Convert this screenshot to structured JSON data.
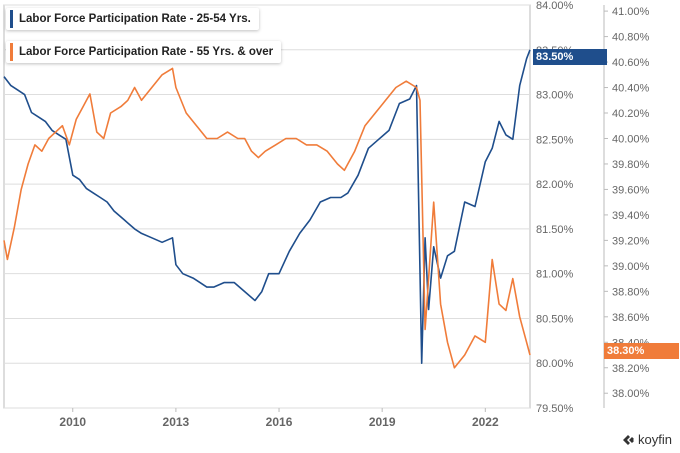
{
  "legend": {
    "series1": "Labor Force Participation Rate - 25-54 Yrs.",
    "series2": "Labor Force Participation Rate - 55 Yrs. & over"
  },
  "badges": {
    "left_axis": "83.50%",
    "right_axis": "38.30%"
  },
  "brand": {
    "name": "koyfin",
    "icon": "koyfin-logo-icon"
  },
  "colors": {
    "series1": "#1f4e8c",
    "series2": "#f07c3a",
    "grid": "#dedede",
    "axis": "#bbbbbb"
  },
  "chart_data": {
    "type": "line",
    "title": "",
    "x_range": [
      2008.0,
      2023.3
    ],
    "x_ticks": [
      2010,
      2013,
      2016,
      2019,
      2022
    ],
    "y_left": {
      "label": "",
      "ylim": [
        79.5,
        84.0
      ],
      "ticks": [
        79.5,
        80.0,
        80.5,
        81.0,
        81.5,
        82.0,
        82.5,
        83.0,
        83.5,
        84.0
      ],
      "tick_labels": [
        "79.50%",
        "80.00%",
        "80.50%",
        "81.00%",
        "81.50%",
        "82.00%",
        "82.50%",
        "83.00%",
        "83.50%",
        "84.00%"
      ]
    },
    "y_right": {
      "label": "",
      "ylim": [
        37.884,
        41.048
      ],
      "ticks": [
        38.0,
        38.2,
        38.4,
        38.6,
        38.8,
        39.0,
        39.2,
        39.4,
        39.6,
        39.8,
        40.0,
        40.2,
        40.4,
        40.6,
        40.8,
        41.0
      ],
      "tick_labels": [
        "38.00%",
        "38.20%",
        "38.40%",
        "38.60%",
        "38.80%",
        "39.00%",
        "39.20%",
        "39.40%",
        "39.60%",
        "39.80%",
        "40.00%",
        "40.20%",
        "40.40%",
        "40.60%",
        "40.80%",
        "41.00%"
      ]
    },
    "series": [
      {
        "name": "Labor Force Participation Rate - 25-54 Yrs.",
        "axis": "left",
        "x": [
          2008.0,
          2008.2,
          2008.4,
          2008.6,
          2008.8,
          2009.0,
          2009.2,
          2009.4,
          2009.6,
          2009.8,
          2010.0,
          2010.2,
          2010.4,
          2010.6,
          2010.8,
          2011.0,
          2011.2,
          2011.5,
          2011.8,
          2012.0,
          2012.3,
          2012.6,
          2012.9,
          2013.0,
          2013.2,
          2013.5,
          2013.7,
          2013.9,
          2014.1,
          2014.4,
          2014.7,
          2015.0,
          2015.3,
          2015.5,
          2015.7,
          2016.0,
          2016.3,
          2016.6,
          2016.9,
          2017.2,
          2017.5,
          2017.8,
          2018.0,
          2018.3,
          2018.6,
          2018.9,
          2019.2,
          2019.5,
          2019.8,
          2020.0,
          2020.15,
          2020.25,
          2020.35,
          2020.5,
          2020.7,
          2020.9,
          2021.1,
          2021.4,
          2021.7,
          2022.0,
          2022.2,
          2022.4,
          2022.6,
          2022.8,
          2023.0,
          2023.2,
          2023.3
        ],
        "values": [
          83.2,
          83.1,
          83.05,
          83.0,
          82.8,
          82.75,
          82.7,
          82.6,
          82.55,
          82.5,
          82.1,
          82.05,
          81.95,
          81.9,
          81.85,
          81.8,
          81.7,
          81.6,
          81.5,
          81.45,
          81.4,
          81.35,
          81.4,
          81.1,
          81.0,
          80.95,
          80.9,
          80.85,
          80.85,
          80.9,
          80.9,
          80.8,
          80.7,
          80.8,
          81.0,
          81.0,
          81.25,
          81.45,
          81.6,
          81.8,
          81.85,
          81.85,
          81.9,
          82.1,
          82.4,
          82.5,
          82.6,
          82.9,
          82.95,
          83.1,
          80.0,
          81.4,
          80.6,
          81.3,
          80.95,
          81.2,
          81.25,
          81.8,
          81.75,
          82.25,
          82.4,
          82.7,
          82.55,
          82.5,
          83.1,
          83.4,
          83.5
        ]
      },
      {
        "name": "Labor Force Participation Rate - 55 Yrs. & over",
        "axis": "right",
        "x": [
          2008.0,
          2008.1,
          2008.3,
          2008.5,
          2008.7,
          2008.9,
          2009.1,
          2009.3,
          2009.5,
          2009.7,
          2009.9,
          2010.1,
          2010.3,
          2010.5,
          2010.7,
          2010.9,
          2011.1,
          2011.4,
          2011.6,
          2011.8,
          2012.0,
          2012.3,
          2012.6,
          2012.9,
          2013.0,
          2013.3,
          2013.6,
          2013.9,
          2014.2,
          2014.5,
          2014.8,
          2015.0,
          2015.2,
          2015.4,
          2015.6,
          2015.9,
          2016.2,
          2016.5,
          2016.8,
          2017.1,
          2017.4,
          2017.7,
          2017.9,
          2018.2,
          2018.5,
          2018.8,
          2019.1,
          2019.4,
          2019.7,
          2020.0,
          2020.1,
          2020.25,
          2020.35,
          2020.5,
          2020.7,
          2020.9,
          2021.1,
          2021.4,
          2021.7,
          2022.0,
          2022.2,
          2022.4,
          2022.6,
          2022.8,
          2023.0,
          2023.2,
          2023.3
        ],
        "values": [
          39.2,
          39.05,
          39.3,
          39.6,
          39.8,
          39.95,
          39.9,
          40.0,
          40.05,
          40.1,
          39.95,
          40.15,
          40.25,
          40.35,
          40.05,
          40.0,
          40.2,
          40.25,
          40.3,
          40.4,
          40.3,
          40.4,
          40.5,
          40.55,
          40.4,
          40.2,
          40.1,
          40.0,
          40.0,
          40.05,
          40.0,
          40.0,
          39.9,
          39.85,
          39.9,
          39.95,
          40.0,
          40.0,
          39.95,
          39.95,
          39.9,
          39.8,
          39.75,
          39.9,
          40.1,
          40.2,
          40.3,
          40.4,
          40.45,
          40.4,
          40.3,
          38.5,
          38.9,
          39.5,
          38.7,
          38.4,
          38.2,
          38.3,
          38.45,
          38.4,
          39.05,
          38.7,
          38.65,
          38.9,
          38.6,
          38.4,
          38.3
        ]
      }
    ]
  }
}
